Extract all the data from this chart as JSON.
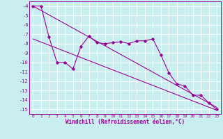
{
  "xlabel": "Windchill (Refroidissement éolien,°C)",
  "background_color": "#c8eef0",
  "grid_color": "#ffffff",
  "line_color": "#990099",
  "xlim": [
    -0.5,
    23.5
  ],
  "ylim": [
    -15.5,
    -3.5
  ],
  "yticks": [
    -4,
    -5,
    -6,
    -7,
    -8,
    -9,
    -10,
    -11,
    -12,
    -13,
    -14,
    -15
  ],
  "xticks": [
    0,
    1,
    2,
    3,
    4,
    5,
    6,
    7,
    8,
    9,
    10,
    11,
    12,
    13,
    14,
    15,
    16,
    17,
    18,
    19,
    20,
    21,
    22,
    23
  ],
  "line1_x": [
    0,
    1,
    2,
    3,
    4,
    5,
    6,
    7,
    8,
    9,
    10,
    11,
    12,
    13,
    14,
    15,
    16,
    17,
    18,
    19,
    20,
    21,
    22,
    23
  ],
  "line1_y": [
    -4.0,
    -4.0,
    -7.3,
    -10.0,
    -10.0,
    -10.7,
    -8.3,
    -7.2,
    -7.9,
    -8.0,
    -7.9,
    -7.8,
    -8.0,
    -7.7,
    -7.7,
    -7.5,
    -9.2,
    -11.1,
    -12.3,
    -12.5,
    -13.5,
    -13.5,
    -14.3,
    -15.0
  ],
  "line2_x": [
    0,
    23
  ],
  "line2_y": [
    -4.0,
    -14.8
  ],
  "line3_x": [
    0,
    23
  ],
  "line3_y": [
    -7.5,
    -15.1
  ]
}
